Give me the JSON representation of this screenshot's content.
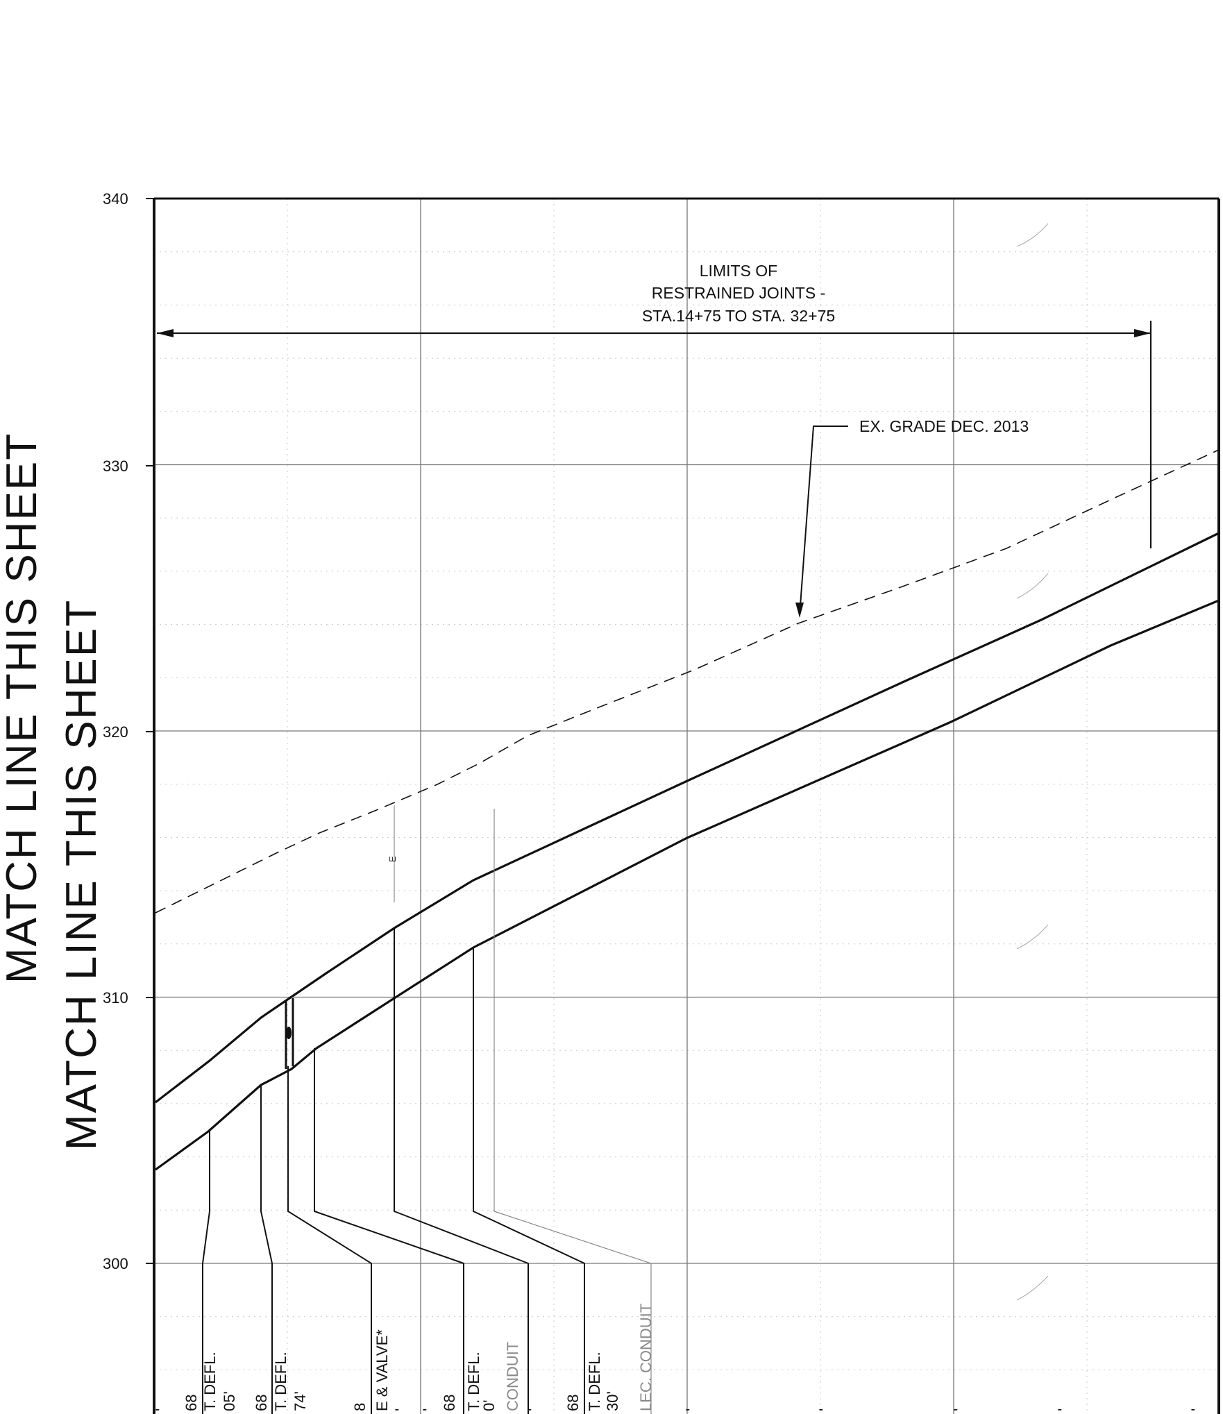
{
  "match_lines": [
    "MATCH LINE THIS SHEET",
    "MATCH LINE THIS SHEET"
  ],
  "y_axis": {
    "min": 300,
    "max": 340,
    "ticks": [
      "300",
      "310",
      "320",
      "330",
      "340"
    ]
  },
  "limits_note": [
    "LIMITS OF",
    "RESTRAINED JOINTS -",
    "STA.14+75 TO STA. 32+75"
  ],
  "grade_note": "EX. GRADE DEC. 2013",
  "marker_e": "E",
  "callouts": [
    {
      "lines": [
        "'",
        "68",
        "T. DEFL.",
        "05'"
      ]
    },
    {
      "lines": [
        "68",
        "T. DEFL.",
        "74'"
      ]
    },
    {
      "lines": [
        "8",
        "E & VALVE*",
        "'"
      ]
    },
    {
      "lines": [
        "'",
        "68",
        "T. DEFL.",
        "0'",
        "CONDUIT",
        "'"
      ]
    },
    {
      "lines": [
        "68",
        "T. DEFL.",
        "30'"
      ]
    },
    {
      "lines": [
        "LEC. CONDUIT"
      ]
    }
  ],
  "bottom_marks": [
    "'",
    "'",
    "'",
    "'",
    "'"
  ],
  "colors": {
    "ink": "#111111",
    "grid": "#bbbbbb",
    "faint": "#888888"
  }
}
